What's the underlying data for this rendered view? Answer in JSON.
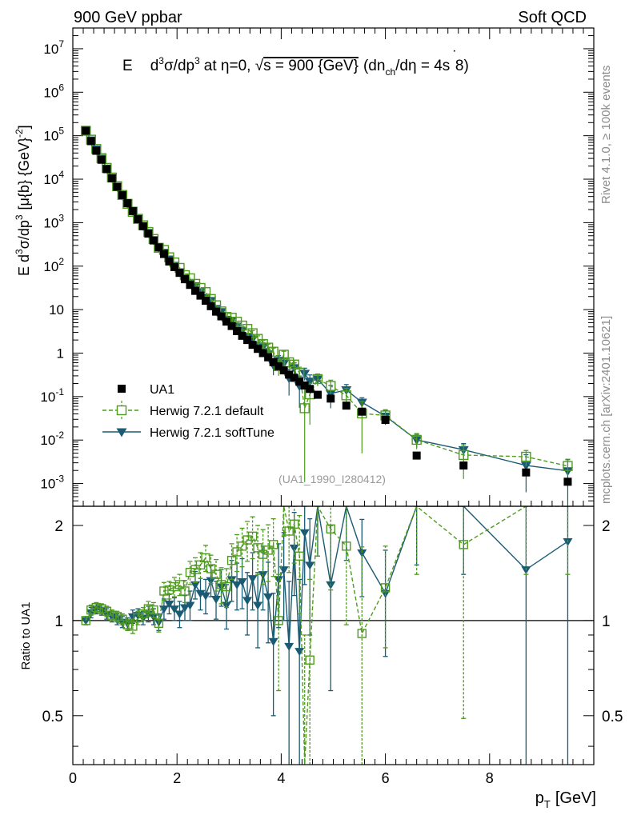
{
  "header": {
    "left": "900 GeV ppbar",
    "right": "Soft QCD"
  },
  "side": {
    "rivet": "Rivet 4.1.0, ≥ 100k events",
    "mcplots": "mcplots.cern.ch [arXiv:2401.10621]"
  },
  "chart_data": {
    "type": "scatter",
    "title": "E d³σ/dp³ at η=0, √s = 900 {GeV} (dn_ch/dη = 4s 8)",
    "title_parts": {
      "a": "E",
      "b": "d",
      "c": "3",
      "d": "σ/dp",
      "e": "3",
      "f": "at η=0, √",
      "g": "s = 900 {GeV}",
      "h": "(dn",
      "i": "ch",
      "j": "/dη = 4s ",
      "k": "8)"
    },
    "ylabel": "E d³σ/dp³ [μ{b} {GeV}⁻²]",
    "ylabel_parts": {
      "a": "E d",
      "b": "3",
      "c": "σ/dp",
      "d": "3",
      "e": "[μ{b} {GeV}",
      "f": "-2",
      "g": "]"
    },
    "xlabel": "p_T [GeV]",
    "xlabel_parts": {
      "a": "p",
      "b": "T",
      "c": "[GeV]"
    },
    "watermark": "(UA1_1990_I280412)",
    "xlim": [
      0,
      10
    ],
    "ylim": [
      0.0003,
      30000000
    ],
    "ratio_ylabel": "Ratio to UA1",
    "ratio_ylim": [
      0.35,
      2.3
    ],
    "x_ticks": [
      "0",
      "2",
      "4",
      "6",
      "8"
    ],
    "y_ticks": [
      "10^7",
      "10^6",
      "10^5",
      "10^4",
      "10^3",
      "10^2",
      "10",
      "1",
      "10^-1",
      "10^-2",
      "10^-3"
    ],
    "ratio_ticks": [
      "2",
      "1",
      "0.5"
    ],
    "legend": [
      "UA1",
      "Herwig 7.2.1 default",
      "Herwig 7.2.1 softTune"
    ],
    "series": [
      {
        "name": "UA1",
        "color": "#000000",
        "marker": "filled-square",
        "x": [
          0.25,
          0.35,
          0.45,
          0.55,
          0.65,
          0.75,
          0.85,
          0.95,
          1.05,
          1.15,
          1.25,
          1.35,
          1.45,
          1.55,
          1.65,
          1.75,
          1.85,
          1.95,
          2.05,
          2.15,
          2.25,
          2.35,
          2.45,
          2.55,
          2.65,
          2.75,
          2.85,
          2.95,
          3.05,
          3.15,
          3.25,
          3.35,
          3.45,
          3.55,
          3.65,
          3.75,
          3.85,
          3.95,
          4.05,
          4.15,
          4.25,
          4.35,
          4.45,
          4.55,
          4.7,
          4.95,
          5.25,
          5.55,
          6.0,
          6.6,
          7.5,
          8.7,
          9.5
        ],
        "y": [
          130000,
          75000,
          45000,
          28000,
          17000,
          10500,
          6700,
          4300,
          2800,
          1850,
          1200,
          830,
          560,
          390,
          270,
          190,
          128,
          95,
          70,
          50,
          37,
          27,
          21,
          16,
          12,
          9,
          7,
          5.3,
          4.2,
          3.2,
          2.5,
          2.0,
          1.55,
          1.25,
          1.0,
          0.8,
          0.62,
          0.5,
          0.4,
          0.32,
          0.27,
          0.22,
          0.18,
          0.15,
          0.11,
          0.09,
          0.062,
          0.045,
          0.029,
          0.0044,
          0.0026,
          0.0018,
          0.0011
        ]
      },
      {
        "name": "Herwig 7.2.1 default",
        "color": "#4f9a1f",
        "marker": "open-square",
        "line": "dashed",
        "ratio": [
          1.0,
          1.08,
          1.1,
          1.09,
          1.07,
          1.04,
          1.03,
          1.01,
          0.97,
          0.96,
          1.02,
          1.05,
          1.09,
          1.08,
          0.98,
          1.24,
          1.25,
          1.28,
          1.3,
          1.24,
          1.42,
          1.45,
          1.5,
          1.58,
          1.46,
          1.4,
          1.3,
          1.28,
          1.55,
          1.65,
          1.72,
          1.8,
          1.85,
          1.7,
          1.62,
          1.67,
          1.74,
          1.0,
          2.3,
          1.92,
          2.02,
          1.6,
          0.3,
          0.75,
          2.3,
          1.95,
          1.72,
          0.91,
          1.27,
          2.3,
          1.74,
          2.3,
          2.3
        ],
        "err": [
          0.03,
          0.04,
          0.04,
          0.04,
          0.04,
          0.04,
          0.04,
          0.04,
          0.04,
          0.05,
          0.05,
          0.05,
          0.06,
          0.06,
          0.06,
          0.08,
          0.08,
          0.09,
          0.1,
          0.1,
          0.12,
          0.13,
          0.14,
          0.15,
          0.15,
          0.16,
          0.17,
          0.18,
          0.2,
          0.22,
          0.24,
          0.26,
          0.28,
          0.3,
          0.32,
          0.34,
          0.36,
          0.4,
          0.45,
          0.5,
          0.5,
          0.55,
          0.6,
          0.6,
          0.7,
          0.7,
          0.75,
          0.8,
          0.45,
          0.9,
          1.25,
          0.9,
          0.9
        ]
      },
      {
        "name": "Herwig 7.2.1 softTune",
        "color": "#1a5b73",
        "marker": "filled-triangle-down",
        "line": "solid",
        "ratio": [
          1.0,
          1.06,
          1.09,
          1.08,
          1.05,
          1.03,
          1.01,
          0.99,
          0.98,
          1.03,
          1.04,
          1.02,
          1.05,
          1.03,
          0.99,
          1.09,
          1.13,
          1.09,
          1.05,
          1.1,
          1.12,
          1.3,
          1.22,
          1.2,
          1.34,
          1.17,
          1.28,
          1.12,
          1.35,
          1.3,
          1.33,
          1.16,
          1.36,
          1.12,
          1.4,
          1.19,
          0.86,
          1.35,
          1.45,
          0.83,
          1.7,
          0.8,
          1.9,
          1.5,
          2.3,
          1.3,
          2.3,
          1.64,
          1.22,
          2.3,
          2.3,
          1.45,
          1.78
        ],
        "err": [
          0.03,
          0.04,
          0.04,
          0.04,
          0.04,
          0.04,
          0.04,
          0.04,
          0.04,
          0.05,
          0.05,
          0.05,
          0.06,
          0.06,
          0.06,
          0.08,
          0.08,
          0.09,
          0.1,
          0.1,
          0.12,
          0.13,
          0.14,
          0.15,
          0.15,
          0.16,
          0.17,
          0.18,
          0.2,
          0.22,
          0.24,
          0.26,
          0.28,
          0.3,
          0.32,
          0.34,
          0.36,
          0.4,
          0.45,
          0.5,
          0.5,
          0.55,
          0.6,
          0.6,
          0.7,
          0.7,
          0.75,
          0.45,
          0.45,
          0.8,
          0.9,
          1.1,
          1.5
        ]
      }
    ]
  }
}
